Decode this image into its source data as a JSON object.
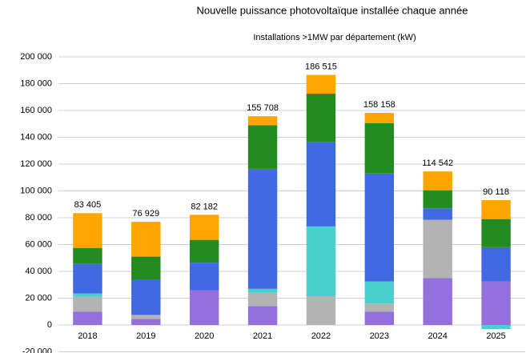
{
  "chart_data": {
    "type": "stacked_bar",
    "title": "Nouvelle puissance photovoltaïque installée chaque année",
    "subtitle": "Installations >1MW par département (kW)",
    "categories": [
      "2018",
      "2019",
      "2020",
      "2021",
      "2022",
      "2023",
      "2024",
      "2025"
    ],
    "series": [
      {
        "color": "#9370db",
        "values": [
          10000,
          4500,
          26000,
          14000,
          0,
          10000,
          35000,
          32500
        ]
      },
      {
        "color": "#b3b3b3",
        "values": [
          11000,
          3000,
          0,
          10000,
          21500,
          6000,
          43500,
          0
        ]
      },
      {
        "color": "#48d1cc",
        "values": [
          2500,
          0,
          0,
          3000,
          52000,
          16500,
          0,
          -3000
        ]
      },
      {
        "color": "#4169e1",
        "values": [
          22000,
          26000,
          20500,
          89500,
          63000,
          80500,
          8500,
          25500
        ]
      },
      {
        "color": "#228b22",
        "values": [
          12000,
          17500,
          17000,
          32500,
          36000,
          37500,
          13500,
          21000
        ]
      },
      {
        "color": "#ffa500",
        "values": [
          25905,
          25929,
          18682,
          6708,
          14015,
          7658,
          14042,
          14118
        ]
      }
    ],
    "totals": [
      83405,
      76929,
      82182,
      155708,
      186515,
      158158,
      114542,
      90118
    ],
    "total_labels": [
      "83 405",
      "76 929",
      "82 182",
      "155 708",
      "186 515",
      "158 158",
      "114 542",
      "90 118"
    ],
    "ylim": [
      -20000,
      200000
    ],
    "yticks": [
      {
        "value": -20000,
        "label": "-20 000"
      },
      0,
      {
        "value": 20000,
        "label": "20 000"
      },
      {
        "value": 40000,
        "label": "40 000"
      },
      {
        "value": 60000,
        "label": "60 000"
      },
      {
        "value": 80000,
        "label": "80 000"
      },
      {
        "value": 100000,
        "label": "100 000"
      },
      {
        "value": 120000,
        "label": "120 000"
      },
      {
        "value": 140000,
        "label": "140 000"
      },
      {
        "value": 160000,
        "label": "160 000"
      },
      {
        "value": 180000,
        "label": "180 000"
      },
      {
        "value": 200000,
        "label": "200 000"
      }
    ],
    "grid": true
  }
}
